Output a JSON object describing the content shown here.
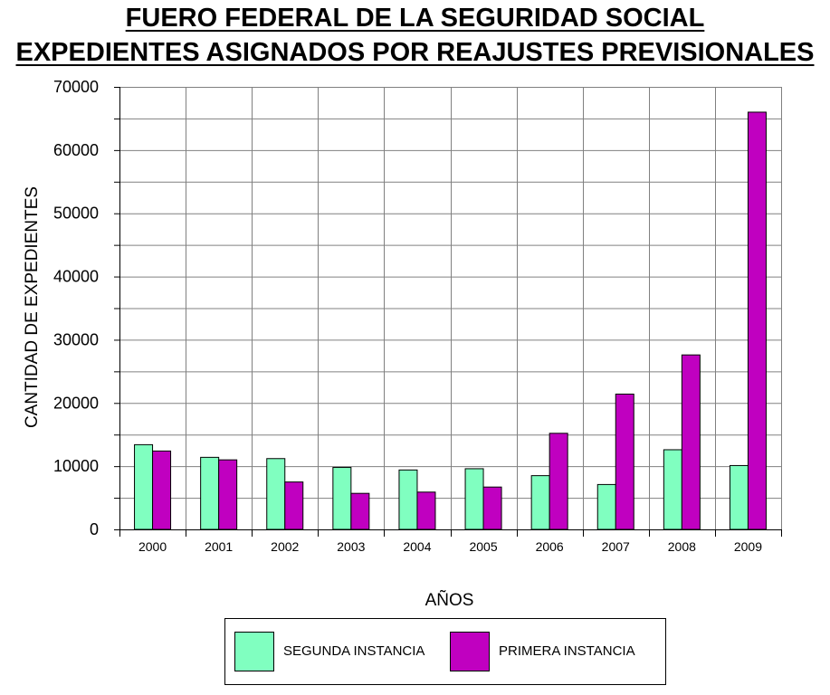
{
  "chart_data": {
    "type": "bar",
    "title": "FUERO FEDERAL DE LA SEGURIDAD SOCIAL",
    "subtitle": "EXPEDIENTES ASIGNADOS POR REAJUSTES PREVISIONALES",
    "xlabel": "AÑOS",
    "ylabel": "CANTIDAD DE EXPEDIENTES",
    "ylim": [
      0,
      70000
    ],
    "yticks": [
      0,
      10000,
      20000,
      30000,
      40000,
      50000,
      60000,
      70000
    ],
    "grid": true,
    "legend_position": "bottom",
    "categories": [
      "2000",
      "2001",
      "2002",
      "2003",
      "2004",
      "2005",
      "2006",
      "2007",
      "2008",
      "2009"
    ],
    "series": [
      {
        "name": "SEGUNDA INSTANCIA",
        "color": "#80ffc0",
        "values": [
          13400,
          11400,
          11200,
          9800,
          9400,
          9600,
          8500,
          7100,
          12600,
          10100
        ]
      },
      {
        "name": "PRIMERA INSTANCIA",
        "color": "#c000c0",
        "values": [
          12400,
          11000,
          7500,
          5700,
          5900,
          6700,
          15200,
          21400,
          27600,
          66000
        ]
      }
    ]
  }
}
